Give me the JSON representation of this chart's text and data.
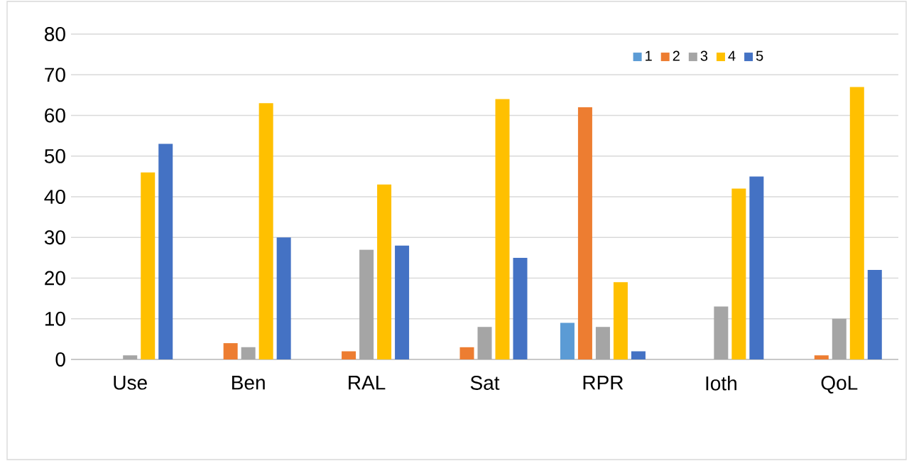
{
  "chart_data": {
    "type": "bar",
    "categories": [
      "Use",
      "Ben",
      "RAL",
      "Sat",
      "RPR",
      "Ioth",
      "QoL"
    ],
    "series": [
      {
        "name": "1",
        "color": "#5b9bd5",
        "values": [
          0,
          0,
          0,
          0,
          9,
          0,
          0
        ]
      },
      {
        "name": "2",
        "color": "#ed7d31",
        "values": [
          0,
          4,
          2,
          3,
          62,
          0,
          1
        ]
      },
      {
        "name": "3",
        "color": "#a5a5a5",
        "values": [
          1,
          3,
          27,
          8,
          8,
          13,
          10
        ]
      },
      {
        "name": "4",
        "color": "#ffc000",
        "values": [
          46,
          63,
          43,
          64,
          19,
          42,
          67
        ]
      },
      {
        "name": "5",
        "color": "#4472c4",
        "values": [
          53,
          30,
          28,
          25,
          2,
          45,
          22
        ]
      }
    ],
    "ylim": [
      0,
      80
    ],
    "yticks": [
      0,
      10,
      20,
      30,
      40,
      50,
      60,
      70,
      80
    ],
    "grid": "y",
    "legend": "top right"
  }
}
